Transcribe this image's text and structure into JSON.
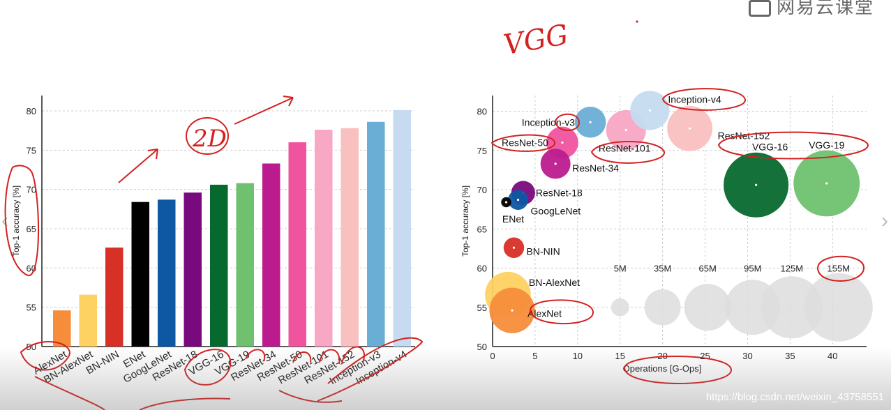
{
  "header": {
    "logo_text": "网易云课堂",
    "annotation_vgg": "VGG",
    "annotation_2d": "2D"
  },
  "watermark": "https://blog.csdn.net/weixin_43758551",
  "colors": {
    "AlexNet": "#f58d3b",
    "BN-AlexNet": "#fdd162",
    "BN-NIN": "#d73027",
    "ENet": "#000000",
    "GoogLeNet": "#0d57a3",
    "ResNet-18": "#780a7d",
    "VGG-16": "#08692f",
    "VGG-19": "#6fc16f",
    "ResNet-34": "#bc1b8f",
    "ResNet-50": "#f0549f",
    "ResNet-101": "#f8a7c4",
    "ResNet-152": "#f9c0c0",
    "Inception-v3": "#6aaed6",
    "Inception-v4": "#c6dbef",
    "legend": "#dddddd",
    "ink": "#d42020"
  },
  "chart_data": [
    {
      "type": "bar",
      "title": "",
      "xlabel": "",
      "ylabel": "Top-1 accuracy [%]",
      "ylim": [
        50,
        80
      ],
      "yticks": [
        50,
        55,
        60,
        65,
        70,
        75,
        80
      ],
      "grid": true,
      "categories": [
        "AlexNet",
        "BN-AlexNet",
        "BN-NIN",
        "ENet",
        "GoogLeNet",
        "ResNet-18",
        "VGG-16",
        "VGG-19",
        "ResNet-34",
        "ResNet-50",
        "ResNet-101",
        "ResNet-152",
        "Inception-v3",
        "Inception-v4"
      ],
      "values": [
        54.6,
        56.6,
        62.6,
        68.4,
        68.7,
        69.6,
        70.6,
        70.8,
        73.3,
        76.0,
        77.6,
        77.8,
        78.6,
        80.1
      ]
    },
    {
      "type": "scatter",
      "title": "",
      "xlabel": "Operations [G-Ops]",
      "ylabel": "Top-1 accuracy [%]",
      "xlim": [
        0,
        44
      ],
      "ylim": [
        50,
        82
      ],
      "xticks": [
        0,
        5,
        10,
        15,
        20,
        25,
        30,
        35,
        40
      ],
      "yticks": [
        50,
        55,
        60,
        65,
        70,
        75,
        80
      ],
      "grid": true,
      "points": [
        {
          "name": "AlexNet",
          "ops": 2.3,
          "acc": 54.6,
          "params_M": 61
        },
        {
          "name": "BN-AlexNet",
          "ops": 1.8,
          "acc": 56.6,
          "params_M": 62
        },
        {
          "name": "BN-NIN",
          "ops": 2.5,
          "acc": 62.6,
          "params_M": 7.6
        },
        {
          "name": "ENet",
          "ops": 1.6,
          "acc": 68.4,
          "params_M": 0.4
        },
        {
          "name": "GoogLeNet",
          "ops": 3.0,
          "acc": 68.7,
          "params_M": 7.0
        },
        {
          "name": "ResNet-18",
          "ops": 3.6,
          "acc": 69.6,
          "params_M": 11.7
        },
        {
          "name": "ResNet-34",
          "ops": 7.4,
          "acc": 73.3,
          "params_M": 21.8
        },
        {
          "name": "ResNet-50",
          "ops": 8.2,
          "acc": 76.0,
          "params_M": 25.6
        },
        {
          "name": "ResNet-101",
          "ops": 15.7,
          "acc": 77.6,
          "params_M": 44.5
        },
        {
          "name": "ResNet-152",
          "ops": 23.2,
          "acc": 77.8,
          "params_M": 60.2
        },
        {
          "name": "Inception-v3",
          "ops": 11.5,
          "acc": 78.6,
          "params_M": 23.8
        },
        {
          "name": "Inception-v4",
          "ops": 18.5,
          "acc": 80.1,
          "params_M": 42.7
        },
        {
          "name": "VGG-16",
          "ops": 31.0,
          "acc": 70.6,
          "params_M": 138
        },
        {
          "name": "VGG-19",
          "ops": 39.3,
          "acc": 70.8,
          "params_M": 144
        }
      ],
      "size_legend": {
        "acc": 55,
        "items": [
          {
            "label": "5M",
            "ops": 15.0,
            "params_M": 5
          },
          {
            "label": "35M",
            "ops": 20.0,
            "params_M": 35
          },
          {
            "label": "65M",
            "ops": 25.3,
            "params_M": 65
          },
          {
            "label": "95M",
            "ops": 30.6,
            "params_M": 95
          },
          {
            "label": "125M",
            "ops": 35.2,
            "params_M": 125
          },
          {
            "label": "155M",
            "ops": 40.7,
            "params_M": 155
          }
        ]
      }
    }
  ]
}
